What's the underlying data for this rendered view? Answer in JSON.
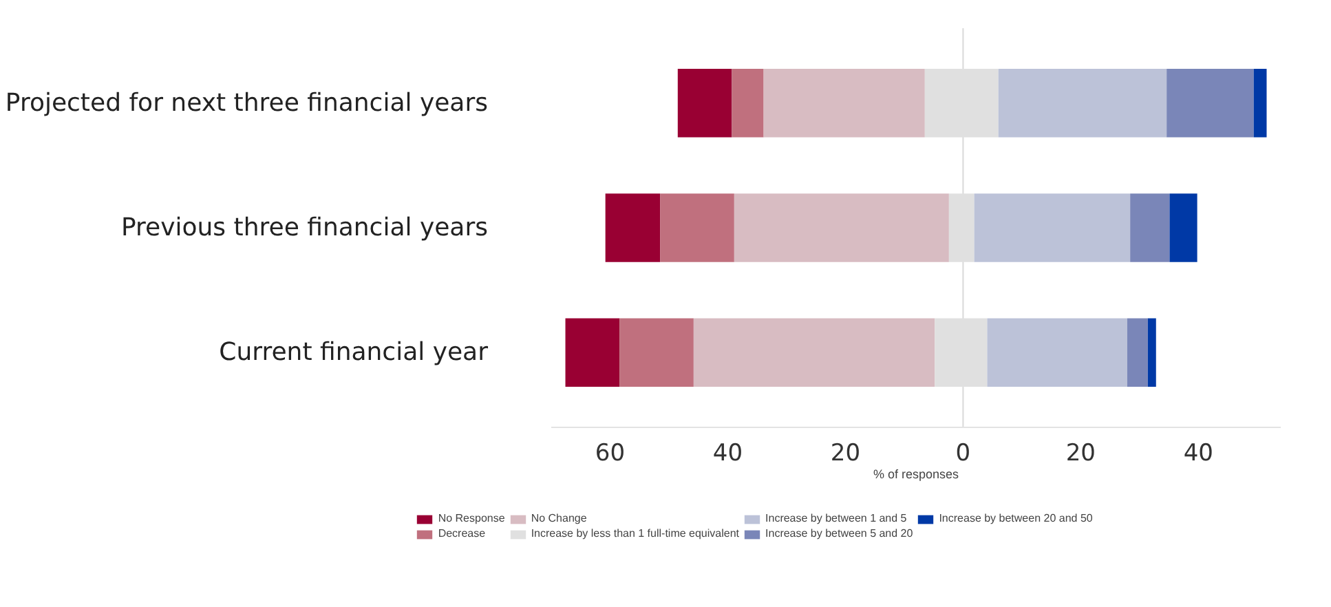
{
  "chart_data": {
    "type": "bar",
    "orientation": "horizontal",
    "xlabel": "% of responses",
    "categories": [
      "Projected for next three financial years",
      "Previous three financial years",
      "Current financial year"
    ],
    "series": [
      {
        "name": "No Response",
        "color": "#990033",
        "base": [
          -48.5,
          -60.8,
          -67.6
        ],
        "values": [
          9.2,
          9.3,
          9.2
        ]
      },
      {
        "name": "Decrease",
        "color": "#c0707e",
        "base": [
          -39.3,
          -51.5,
          -58.4
        ],
        "values": [
          5.4,
          12.6,
          12.6
        ]
      },
      {
        "name": "No Change",
        "color": "#d8bcc2",
        "base": [
          -33.9,
          -38.9,
          -45.8
        ],
        "values": [
          27.4,
          36.5,
          41.0
        ]
      },
      {
        "name": "Increase by less than 1 full-time equivalent",
        "color": "#e0e0e0",
        "base": [
          -6.5,
          -2.4,
          -4.8
        ],
        "values": [
          12.5,
          4.3,
          8.9
        ]
      },
      {
        "name": "Increase by between 1 and 5",
        "color": "#bcc2d8",
        "base": [
          6.0,
          1.9,
          4.1
        ],
        "values": [
          28.6,
          26.5,
          23.8
        ]
      },
      {
        "name": "Increase by between 5 and 20",
        "color": "#7a86b8",
        "base": [
          34.6,
          28.4,
          27.9
        ],
        "values": [
          14.8,
          6.7,
          3.5
        ]
      },
      {
        "name": "Increase by between 20 and 50",
        "color": "#0039a6",
        "base": [
          49.4,
          35.1,
          31.4
        ],
        "values": [
          2.2,
          4.7,
          1.4
        ]
      }
    ],
    "xlim": [
      -70,
      54
    ],
    "xticks": [
      {
        "value": -60,
        "label": "60"
      },
      {
        "value": -40,
        "label": "40"
      },
      {
        "value": -20,
        "label": "20"
      },
      0,
      20,
      40
    ],
    "ref_lines": [
      {
        "axis": "x",
        "value": 0,
        "color": "#d9d9d9"
      }
    ],
    "grid": false,
    "legend": "bottom"
  }
}
